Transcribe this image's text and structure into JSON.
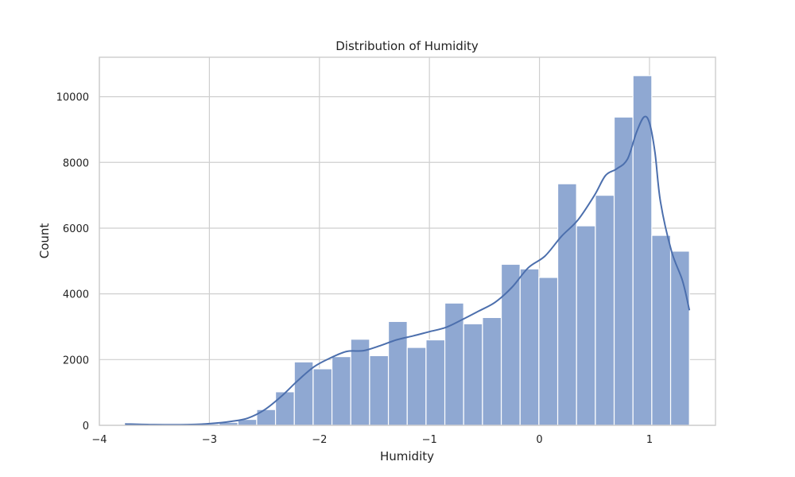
{
  "chart_data": {
    "type": "bar",
    "title": "Distribution of Humidity",
    "xlabel": "Humidity",
    "ylabel": "Count",
    "xlim": [
      -4.0,
      1.6
    ],
    "ylim": [
      0,
      11200
    ],
    "xticks": [
      -4,
      -3,
      -2,
      -1,
      0,
      1
    ],
    "xtick_labels": [
      "−4",
      "−3",
      "−2",
      "−1",
      "0",
      "1"
    ],
    "yticks": [
      0,
      2000,
      4000,
      6000,
      8000,
      10000
    ],
    "ytick_labels": [
      "0",
      "2000",
      "4000",
      "6000",
      "8000",
      "10000"
    ],
    "bins": [
      [
        -3.767,
        -3.596,
        60
      ],
      [
        -3.596,
        -3.425,
        30
      ],
      [
        -3.425,
        -3.254,
        15
      ],
      [
        -3.254,
        -3.083,
        20
      ],
      [
        -3.083,
        -2.912,
        45
      ],
      [
        -2.912,
        -2.741,
        90
      ],
      [
        -2.741,
        -2.57,
        180
      ],
      [
        -2.57,
        -2.399,
        480
      ],
      [
        -2.399,
        -2.228,
        1020
      ],
      [
        -2.228,
        -2.057,
        1930
      ],
      [
        -2.057,
        -1.886,
        1720
      ],
      [
        -1.886,
        -1.715,
        2090
      ],
      [
        -1.715,
        -1.544,
        2620
      ],
      [
        -1.544,
        -1.373,
        2120
      ],
      [
        -1.373,
        -1.202,
        3160
      ],
      [
        -1.202,
        -1.031,
        2370
      ],
      [
        -1.031,
        -0.86,
        2600
      ],
      [
        -0.86,
        -0.689,
        3720
      ],
      [
        -0.689,
        -0.518,
        3090
      ],
      [
        -0.518,
        -0.347,
        3280
      ],
      [
        -0.347,
        -0.176,
        4900
      ],
      [
        -0.176,
        -0.005,
        4760
      ],
      [
        -0.005,
        0.166,
        4500
      ],
      [
        0.166,
        0.337,
        7350
      ],
      [
        0.337,
        0.508,
        6070
      ],
      [
        0.508,
        0.679,
        7000
      ],
      [
        0.679,
        0.85,
        9380
      ],
      [
        0.85,
        1.021,
        10640
      ],
      [
        1.021,
        1.192,
        5780
      ],
      [
        1.192,
        1.363,
        5300
      ]
    ],
    "kde": [
      [
        -3.767,
        40
      ],
      [
        -3.5,
        20
      ],
      [
        -3.2,
        20
      ],
      [
        -3.0,
        50
      ],
      [
        -2.8,
        120
      ],
      [
        -2.65,
        220
      ],
      [
        -2.5,
        470
      ],
      [
        -2.35,
        870
      ],
      [
        -2.2,
        1350
      ],
      [
        -2.05,
        1780
      ],
      [
        -1.9,
        2050
      ],
      [
        -1.75,
        2250
      ],
      [
        -1.6,
        2270
      ],
      [
        -1.45,
        2420
      ],
      [
        -1.3,
        2600
      ],
      [
        -1.15,
        2720
      ],
      [
        -1.0,
        2850
      ],
      [
        -0.85,
        2980
      ],
      [
        -0.7,
        3220
      ],
      [
        -0.55,
        3480
      ],
      [
        -0.4,
        3750
      ],
      [
        -0.25,
        4200
      ],
      [
        -0.1,
        4800
      ],
      [
        0.05,
        5150
      ],
      [
        0.2,
        5750
      ],
      [
        0.35,
        6250
      ],
      [
        0.5,
        7000
      ],
      [
        0.6,
        7600
      ],
      [
        0.7,
        7800
      ],
      [
        0.8,
        8100
      ],
      [
        0.88,
        8900
      ],
      [
        0.95,
        9380
      ],
      [
        1.0,
        9200
      ],
      [
        1.05,
        8300
      ],
      [
        1.1,
        6800
      ],
      [
        1.2,
        5300
      ],
      [
        1.3,
        4400
      ],
      [
        1.363,
        3500
      ]
    ],
    "colors": {
      "bar": "#8fa8d2",
      "bar_edge": "#ffffff",
      "kde": "#4c6fad",
      "grid": "#cfcfcf"
    },
    "grid": true
  }
}
